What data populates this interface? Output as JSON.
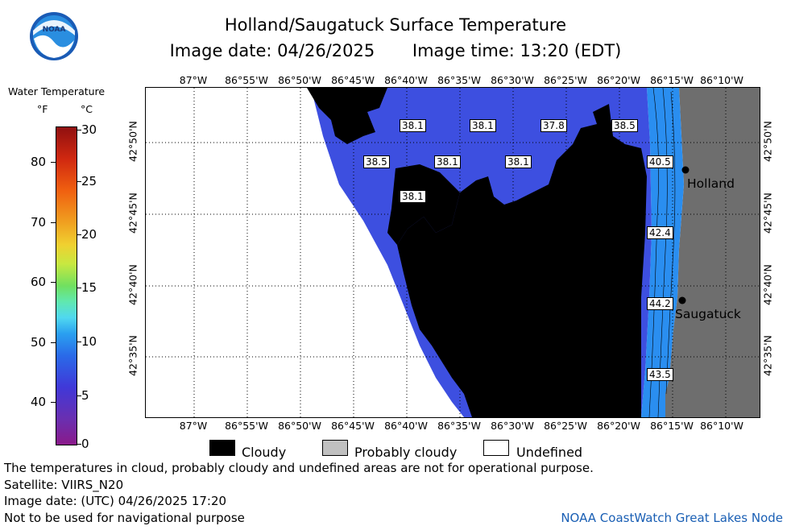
{
  "header": {
    "title": "Holland/Saugatuck Surface Temperature",
    "image_date": "Image date: 04/26/2025",
    "image_time": "Image time: 13:20 (EDT)"
  },
  "logo": {
    "text": "NOAA"
  },
  "legend": {
    "title": "Water Temperature",
    "unit_f": "°F",
    "unit_c": "°C",
    "f_ticks": [
      "80",
      "70",
      "60",
      "50",
      "40"
    ],
    "c_ticks": [
      "30",
      "25",
      "20",
      "15",
      "10",
      "5",
      "0"
    ],
    "colors": [
      "#a0195a",
      "#6a2fa0",
      "#3a3ae0",
      "#1e8ae8",
      "#30c8f0",
      "#60e8c0",
      "#80e060",
      "#d8f040",
      "#f0c020",
      "#f08010",
      "#d03010",
      "#901010"
    ]
  },
  "map": {
    "lon_labels_top": [
      "87°W",
      "86°55'W",
      "86°50'W",
      "86°45'W",
      "86°40'W",
      "86°35'W",
      "86°30'W",
      "86°25'W",
      "86°20'W",
      "86°15'W",
      "86°10'W"
    ],
    "lon_labels_bottom": [
      "87°W",
      "86°55'W",
      "86°50'W",
      "86°45'W",
      "86°40'W",
      "86°35'W",
      "86°30'W",
      "86°25'W",
      "86°20'W",
      "86°15'W",
      "86°10'W"
    ],
    "lat_labels": [
      "42°50'N",
      "42°45'N",
      "42°40'N",
      "42°35'N"
    ],
    "temperatures": [
      "38.1",
      "38.1",
      "37.8",
      "38.5",
      "38.5",
      "38.1",
      "38.1",
      "38.1",
      "40.5",
      "42.4",
      "44.2",
      "43.5"
    ],
    "cities": [
      "Holland",
      "Saugatuck"
    ],
    "colors": {
      "cold_water": "#3d4fe0",
      "warm_water": "#2a8ef0",
      "cloud": "#000000",
      "land": "#6e6e6e",
      "undefined": "#ffffff"
    }
  },
  "key": {
    "cloudy": "Cloudy",
    "probably_cloudy": "Probably cloudy",
    "undefined": "Undefined"
  },
  "footer": {
    "line1": "The temperatures in cloud, probably cloudy and undefined areas are not for operational purpose.",
    "line2": "Satellite: VIIRS_N20",
    "line3": "Image date: (UTC) 04/26/2025  17:20",
    "line4": "Not to be used for navigational purpose",
    "credit": "NOAA CoastWatch Great Lakes Node"
  }
}
